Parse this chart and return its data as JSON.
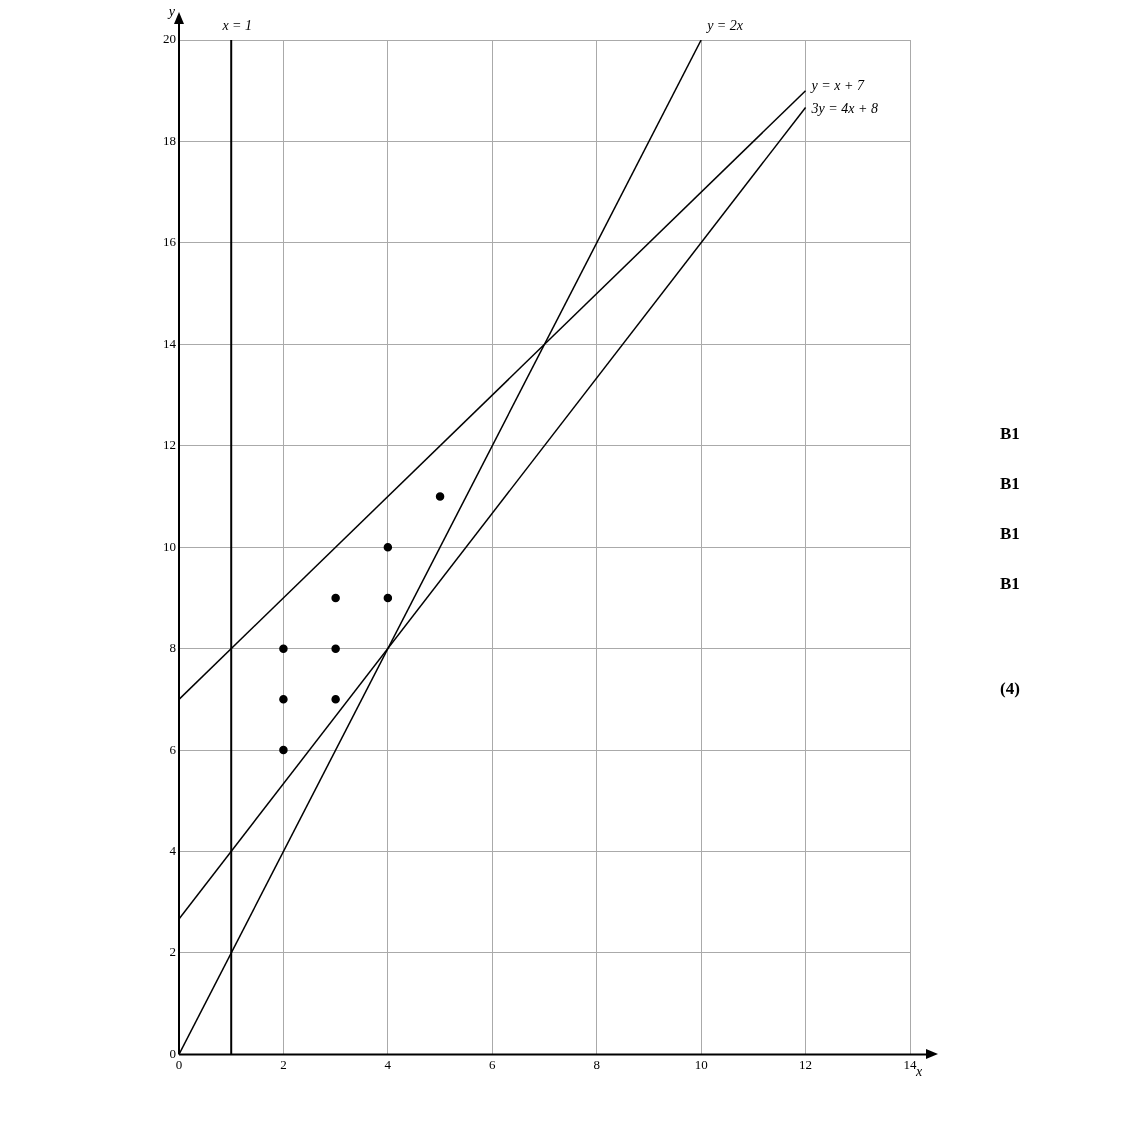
{
  "chart_data": {
    "type": "line",
    "xlabel": "x",
    "ylabel": "y",
    "xlim": [
      0,
      14
    ],
    "ylim": [
      0,
      20
    ],
    "xticks": [
      0,
      2,
      4,
      6,
      8,
      10,
      12,
      14
    ],
    "yticks": [
      0,
      2,
      4,
      6,
      8,
      10,
      12,
      14,
      16,
      18,
      20
    ],
    "grid": true,
    "legend": false,
    "series": [
      {
        "name": "y = 2x",
        "color": "#000000",
        "marker": "none",
        "x": [
          0,
          10
        ],
        "values": [
          0,
          20
        ]
      },
      {
        "name": "y = x + 7",
        "color": "#000000",
        "marker": "none",
        "x": [
          0,
          12
        ],
        "values": [
          7,
          19
        ]
      },
      {
        "name": "3y = 4x + 8",
        "color": "#000000",
        "marker": "none",
        "x": [
          0,
          12
        ],
        "values": [
          2.67,
          18.67
        ]
      },
      {
        "type": "scatter",
        "color": "#000000",
        "marker": "circle",
        "x": [
          2,
          2,
          2,
          3,
          3,
          3,
          4,
          4,
          5
        ],
        "values": [
          6,
          7,
          8,
          7,
          8,
          9,
          9,
          10,
          11
        ]
      }
    ],
    "ref_lines": [
      {
        "axis": "x",
        "value": 1,
        "label": "x = 1",
        "color": "#000000"
      }
    ],
    "annotations": [
      "B1",
      "B1",
      "B1",
      "B1",
      "(4)"
    ]
  }
}
